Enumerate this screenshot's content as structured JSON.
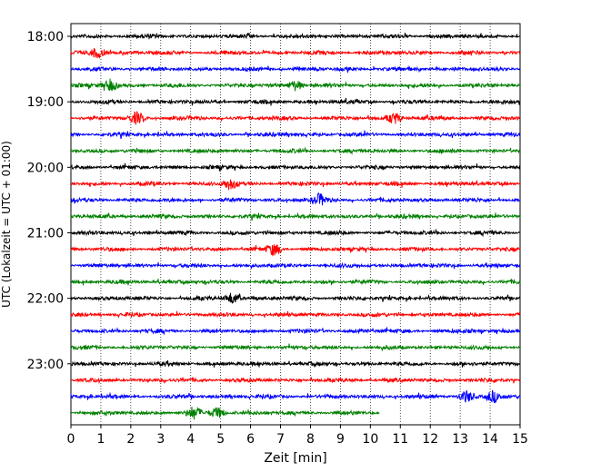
{
  "chart_data": {
    "type": "line",
    "subtype": "helicorder",
    "xlabel": "Zeit  [min]",
    "ylabel": "UTC (Lokalzeit = UTC + 01:00)",
    "xlim": [
      0,
      15
    ],
    "x_ticks": [
      "0",
      "1",
      "2",
      "3",
      "4",
      "5",
      "6",
      "7",
      "8",
      "9",
      "10",
      "11",
      "12",
      "13",
      "14",
      "15"
    ],
    "y_tick_labels": [
      "18:00",
      "19:00",
      "20:00",
      "21:00",
      "22:00",
      "23:00"
    ],
    "grid": "vertical-dotted",
    "colors": [
      "#000000",
      "#ff0000",
      "#0000ff",
      "#008000"
    ],
    "trace_start_minutes": [
      0,
      15,
      30,
      45,
      60,
      75,
      90,
      105,
      120,
      135,
      150,
      165,
      180,
      195,
      210,
      225,
      240,
      255,
      270,
      285,
      300,
      315,
      330,
      345
    ],
    "trace_color_cycle": [
      "black",
      "red",
      "blue",
      "green"
    ],
    "last_trace_end_minute": 10.3,
    "notable_events": [
      {
        "trace": 1,
        "x": 0.9
      },
      {
        "trace": 3,
        "x": 1.3
      },
      {
        "trace": 3,
        "x": 7.5
      },
      {
        "trace": 5,
        "x": 2.2
      },
      {
        "trace": 5,
        "x": 10.8
      },
      {
        "trace": 9,
        "x": 5.3
      },
      {
        "trace": 10,
        "x": 8.3
      },
      {
        "trace": 13,
        "x": 6.8
      },
      {
        "trace": 16,
        "x": 5.4
      },
      {
        "trace": 22,
        "x": 13.2
      },
      {
        "trace": 22,
        "x": 14.1
      },
      {
        "trace": 23,
        "x": 4.1
      },
      {
        "trace": 23,
        "x": 4.9
      }
    ]
  }
}
